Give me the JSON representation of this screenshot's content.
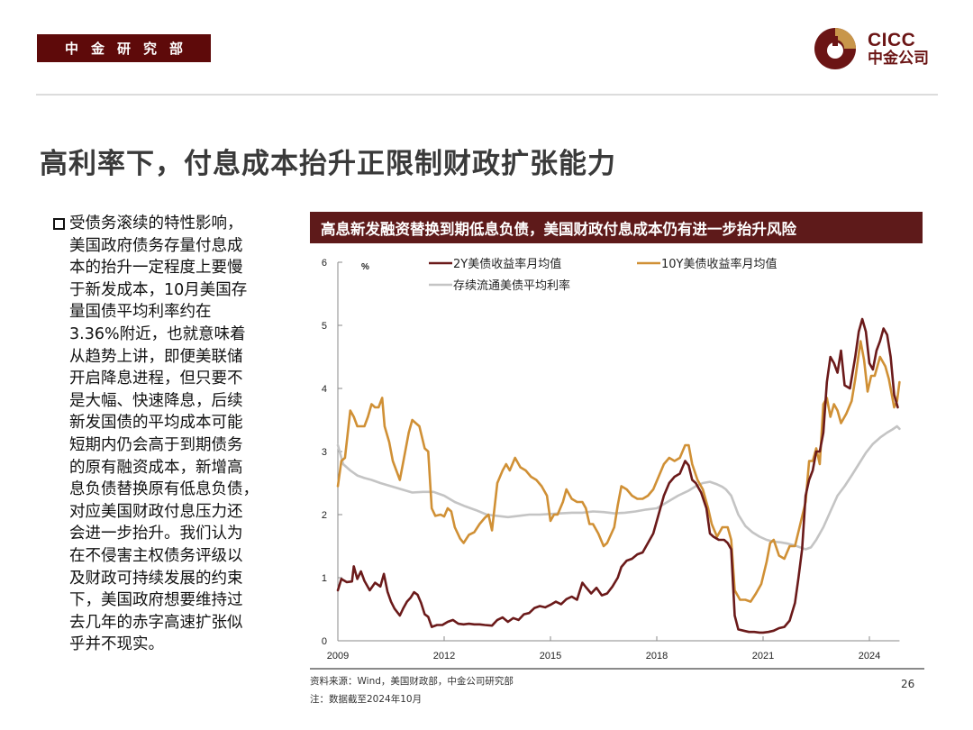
{
  "header": {
    "dept_label": "中金研究部",
    "logo_en": "CICC",
    "logo_cn": "中金公司",
    "colors": {
      "brand_dark": "#6b1515",
      "brand_gold": "#c8964a"
    }
  },
  "page": {
    "title": "高利率下，付息成本抬升正限制财政扩张能力",
    "page_number": "26"
  },
  "bullet": {
    "text": "受债务滚续的特性影响，\n美国政府债务存量付息成\n本的抬升一定程度上要慢\n于新发成本，10月美国存\n量国债平均利率约在\n3.36%附近，也就意味着\n从趋势上讲，即便美联储\n开启降息进程，但只要不\n是大幅、快速降息，后续\n新发国债的平均成本可能\n短期内仍会高于到期债务\n的原有融资成本，新增高\n息负债替换原有低息负债，\n对应美国财政付息压力还\n会进一步抬升。我们认为\n在不侵害主权债务评级以\n及财政可持续发展的约束\n下，美国政府想要维持过\n去几年的赤字高速扩张似\n乎并不现实。"
  },
  "footer": {
    "source": "资料来源：Wind，美国财政部，中金公司研究部",
    "note": "注：数据截至2024年10月"
  },
  "chart_data": {
    "type": "line",
    "title": "高息新发融资替换到期低息负债，美国财政付息成本仍有进一步抬升风险",
    "xlabel": "",
    "ylabel": "%",
    "unit_label": "%",
    "xlim": [
      2009.0,
      2024.85
    ],
    "ylim": [
      0,
      6
    ],
    "x_ticks": [
      "2009",
      "2012",
      "2015",
      "2018",
      "2021",
      "2024"
    ],
    "x_tick_values": [
      2009,
      2012,
      2015,
      2018,
      2021,
      2024
    ],
    "y_ticks": [
      "0",
      "1",
      "2",
      "3",
      "4",
      "5",
      "6"
    ],
    "y_tick_values": [
      0,
      1,
      2,
      3,
      4,
      5,
      6
    ],
    "grid": false,
    "legend_position": "top",
    "series": [
      {
        "name": "2Y美债收益率月均值",
        "color": "#6b1a1a",
        "x": [
          2009.0,
          2009.1,
          2009.25,
          2009.4,
          2009.45,
          2009.55,
          2009.65,
          2009.75,
          2009.9,
          2010.05,
          2010.2,
          2010.3,
          2010.4,
          2010.5,
          2010.6,
          2010.75,
          2010.85,
          2010.95,
          2011.05,
          2011.15,
          2011.25,
          2011.35,
          2011.45,
          2011.55,
          2011.65,
          2011.8,
          2011.95,
          2012.1,
          2012.25,
          2012.4,
          2012.55,
          2012.7,
          2012.85,
          2013.0,
          2013.15,
          2013.35,
          2013.5,
          2013.65,
          2013.8,
          2013.95,
          2014.1,
          2014.25,
          2014.4,
          2014.55,
          2014.7,
          2014.85,
          2015.0,
          2015.15,
          2015.3,
          2015.45,
          2015.6,
          2015.75,
          2015.9,
          2016.0,
          2016.15,
          2016.3,
          2016.45,
          2016.6,
          2016.75,
          2016.9,
          2017.0,
          2017.15,
          2017.3,
          2017.45,
          2017.6,
          2017.75,
          2017.9,
          2018.05,
          2018.2,
          2018.35,
          2018.5,
          2018.65,
          2018.8,
          2018.9,
          2019.0,
          2019.1,
          2019.25,
          2019.4,
          2019.5,
          2019.6,
          2019.75,
          2019.9,
          2020.0,
          2020.1,
          2020.2,
          2020.3,
          2020.45,
          2020.6,
          2020.75,
          2020.9,
          2021.0,
          2021.15,
          2021.3,
          2021.45,
          2021.6,
          2021.75,
          2021.9,
          2022.0,
          2022.1,
          2022.2,
          2022.3,
          2022.4,
          2022.5,
          2022.6,
          2022.7,
          2022.8,
          2022.9,
          2023.0,
          2023.1,
          2023.2,
          2023.3,
          2023.45,
          2023.6,
          2023.7,
          2023.8,
          2023.9,
          2024.0,
          2024.1,
          2024.2,
          2024.3,
          2024.4,
          2024.5,
          2024.6,
          2024.7,
          2024.8
        ],
        "values": [
          0.8,
          0.98,
          0.93,
          0.94,
          1.18,
          0.98,
          1.1,
          0.95,
          0.8,
          0.92,
          0.86,
          1.06,
          0.78,
          0.62,
          0.51,
          0.4,
          0.52,
          0.62,
          0.68,
          0.77,
          0.73,
          0.6,
          0.42,
          0.38,
          0.22,
          0.25,
          0.25,
          0.3,
          0.33,
          0.27,
          0.26,
          0.27,
          0.26,
          0.26,
          0.25,
          0.24,
          0.33,
          0.37,
          0.3,
          0.36,
          0.33,
          0.42,
          0.44,
          0.52,
          0.55,
          0.53,
          0.57,
          0.62,
          0.58,
          0.66,
          0.7,
          0.65,
          0.92,
          0.85,
          0.75,
          0.84,
          0.72,
          0.75,
          0.86,
          1.0,
          1.17,
          1.27,
          1.3,
          1.37,
          1.4,
          1.55,
          1.7,
          2.0,
          2.3,
          2.5,
          2.6,
          2.65,
          2.85,
          2.78,
          2.55,
          2.5,
          2.35,
          2.1,
          1.7,
          1.65,
          1.6,
          1.6,
          1.55,
          1.45,
          0.4,
          0.18,
          0.16,
          0.14,
          0.14,
          0.13,
          0.13,
          0.14,
          0.16,
          0.2,
          0.22,
          0.32,
          0.6,
          1.0,
          1.45,
          2.3,
          2.55,
          2.7,
          3.0,
          3.0,
          3.3,
          4.1,
          4.5,
          4.4,
          4.25,
          4.6,
          4.05,
          4.0,
          4.5,
          4.9,
          5.1,
          4.9,
          4.4,
          4.3,
          4.6,
          4.75,
          4.95,
          4.85,
          4.5,
          3.9,
          3.7
        ]
      },
      {
        "name": "10Y美债收益率月均值",
        "color": "#d09035",
        "x": [
          2009.0,
          2009.1,
          2009.2,
          2009.35,
          2009.45,
          2009.55,
          2009.65,
          2009.75,
          2009.85,
          2009.95,
          2010.05,
          2010.15,
          2010.25,
          2010.32,
          2010.45,
          2010.55,
          2010.65,
          2010.75,
          2010.85,
          2011.0,
          2011.1,
          2011.2,
          2011.3,
          2011.45,
          2011.55,
          2011.65,
          2011.75,
          2011.9,
          2012.0,
          2012.1,
          2012.2,
          2012.3,
          2012.45,
          2012.55,
          2012.7,
          2012.85,
          2013.0,
          2013.15,
          2013.25,
          2013.35,
          2013.5,
          2013.65,
          2013.75,
          2013.85,
          2014.0,
          2014.15,
          2014.3,
          2014.45,
          2014.6,
          2014.75,
          2014.9,
          2015.0,
          2015.1,
          2015.2,
          2015.35,
          2015.45,
          2015.6,
          2015.75,
          2015.9,
          2016.0,
          2016.1,
          2016.2,
          2016.35,
          2016.5,
          2016.6,
          2016.8,
          2016.9,
          2017.0,
          2017.15,
          2017.3,
          2017.45,
          2017.6,
          2017.75,
          2017.9,
          2018.05,
          2018.2,
          2018.35,
          2018.5,
          2018.65,
          2018.8,
          2018.9,
          2019.0,
          2019.15,
          2019.3,
          2019.45,
          2019.55,
          2019.7,
          2019.85,
          2020.0,
          2020.1,
          2020.2,
          2020.35,
          2020.5,
          2020.65,
          2020.8,
          2020.95,
          2021.1,
          2021.2,
          2021.3,
          2021.45,
          2021.6,
          2021.75,
          2021.9,
          2022.05,
          2022.2,
          2022.3,
          2022.4,
          2022.5,
          2022.6,
          2022.7,
          2022.8,
          2022.9,
          2023.0,
          2023.1,
          2023.2,
          2023.35,
          2023.5,
          2023.6,
          2023.75,
          2023.85,
          2023.95,
          2024.05,
          2024.15,
          2024.3,
          2024.45,
          2024.55,
          2024.7,
          2024.78,
          2024.85
        ],
        "values": [
          2.45,
          2.85,
          2.9,
          3.65,
          3.55,
          3.4,
          3.4,
          3.4,
          3.55,
          3.75,
          3.7,
          3.7,
          3.85,
          3.4,
          3.15,
          2.85,
          2.7,
          2.55,
          2.85,
          3.3,
          3.5,
          3.45,
          3.4,
          3.05,
          3.0,
          2.1,
          1.98,
          2.0,
          1.97,
          2.1,
          2.05,
          1.8,
          1.62,
          1.55,
          1.68,
          1.72,
          1.85,
          1.95,
          2.0,
          1.75,
          2.5,
          2.7,
          2.8,
          2.7,
          2.9,
          2.75,
          2.7,
          2.6,
          2.55,
          2.45,
          2.3,
          1.9,
          2.0,
          2.0,
          2.2,
          2.4,
          2.25,
          2.2,
          2.2,
          2.1,
          1.85,
          1.85,
          1.7,
          1.5,
          1.55,
          1.8,
          2.15,
          2.45,
          2.4,
          2.3,
          2.25,
          2.25,
          2.3,
          2.4,
          2.6,
          2.8,
          2.9,
          2.85,
          2.9,
          3.1,
          3.1,
          2.8,
          2.55,
          2.4,
          2.1,
          1.85,
          1.65,
          1.8,
          1.8,
          1.6,
          0.8,
          0.65,
          0.65,
          0.62,
          0.75,
          0.9,
          1.25,
          1.55,
          1.6,
          1.35,
          1.3,
          1.5,
          1.5,
          1.85,
          2.2,
          2.85,
          2.85,
          3.05,
          2.8,
          3.75,
          3.85,
          3.55,
          3.75,
          3.65,
          3.45,
          3.6,
          3.8,
          4.15,
          4.75,
          4.45,
          3.95,
          4.2,
          4.2,
          4.5,
          4.35,
          4.15,
          3.7,
          3.8,
          4.1
        ]
      },
      {
        "name": "存续流通美债平均利率",
        "color": "#c4c4c4",
        "x": [
          2009.0,
          2009.15,
          2009.35,
          2009.55,
          2009.75,
          2009.95,
          2010.2,
          2010.5,
          2010.8,
          2011.1,
          2011.4,
          2011.7,
          2012.0,
          2012.3,
          2012.6,
          2012.9,
          2013.2,
          2013.5,
          2013.8,
          2014.1,
          2014.4,
          2014.7,
          2015.0,
          2015.3,
          2015.6,
          2015.9,
          2016.2,
          2016.5,
          2016.8,
          2017.1,
          2017.4,
          2017.7,
          2018.0,
          2018.3,
          2018.6,
          2018.9,
          2019.1,
          2019.3,
          2019.5,
          2019.7,
          2019.85,
          2019.95,
          2020.1,
          2020.3,
          2020.5,
          2020.7,
          2020.9,
          2021.1,
          2021.3,
          2021.5,
          2021.7,
          2021.9,
          2022.05,
          2022.2,
          2022.35,
          2022.5,
          2022.7,
          2022.9,
          2023.1,
          2023.3,
          2023.5,
          2023.7,
          2023.9,
          2024.1,
          2024.3,
          2024.5,
          2024.65,
          2024.78,
          2024.85
        ],
        "values": [
          3.1,
          2.8,
          2.7,
          2.62,
          2.58,
          2.55,
          2.5,
          2.45,
          2.4,
          2.35,
          2.36,
          2.36,
          2.3,
          2.2,
          2.13,
          2.07,
          2.0,
          1.98,
          1.96,
          1.98,
          2.0,
          2.0,
          2.01,
          2.02,
          2.03,
          2.03,
          2.05,
          2.04,
          2.02,
          2.03,
          2.05,
          2.08,
          2.1,
          2.2,
          2.3,
          2.38,
          2.45,
          2.5,
          2.52,
          2.48,
          2.44,
          2.4,
          2.3,
          2.0,
          1.82,
          1.72,
          1.65,
          1.6,
          1.57,
          1.56,
          1.54,
          1.51,
          1.48,
          1.45,
          1.48,
          1.6,
          1.8,
          2.05,
          2.3,
          2.45,
          2.62,
          2.8,
          2.98,
          3.12,
          3.22,
          3.3,
          3.35,
          3.4,
          3.36
        ]
      }
    ]
  }
}
